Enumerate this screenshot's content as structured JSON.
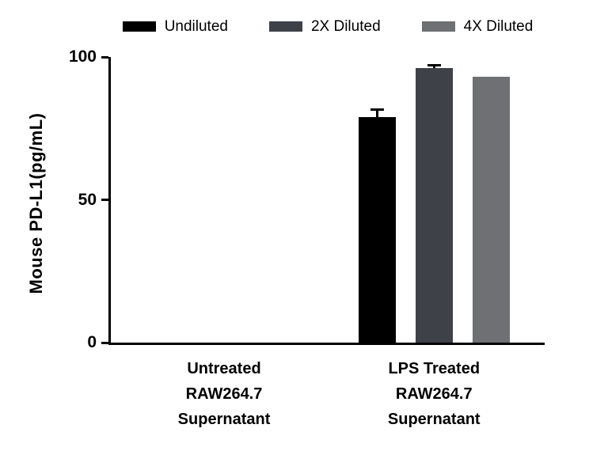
{
  "chart_data": {
    "type": "bar",
    "title": "",
    "xlabel": "",
    "ylabel": "Mouse PD-L1(pg/mL)",
    "ylim": [
      0,
      100
    ],
    "yticks": [
      0,
      50,
      100
    ],
    "grid": false,
    "legend_position": "top",
    "categories": [
      "Untreated\nRAW264.7\nSupernatant",
      "LPS Treated\nRAW264.7\nSupernatant"
    ],
    "series": [
      {
        "name": "Undiluted",
        "color": "#000000",
        "values": [
          0,
          79
        ],
        "errors": [
          0,
          3
        ]
      },
      {
        "name": "2X Diluted",
        "color": "#3e4147",
        "values": [
          0,
          96
        ],
        "errors": [
          0,
          1.5
        ]
      },
      {
        "name": "4X Diluted",
        "color": "#6e7073",
        "values": [
          0,
          93
        ],
        "errors": [
          0,
          0
        ]
      }
    ]
  }
}
